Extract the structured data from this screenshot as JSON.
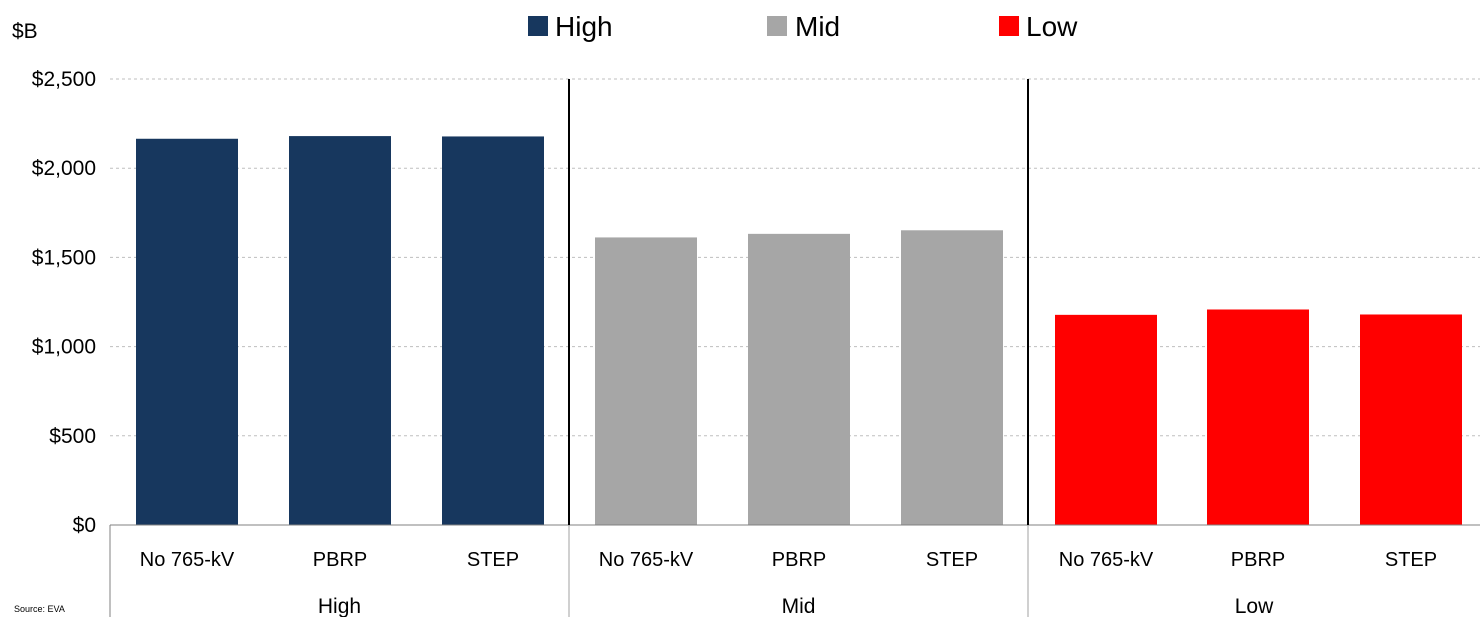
{
  "chart_data": {
    "type": "bar",
    "ylabel": "$B",
    "ylim": [
      0,
      2500
    ],
    "yticks": [
      {
        "value": 0,
        "label": "$0"
      },
      {
        "value": 500,
        "label": "$500"
      },
      {
        "value": 1000,
        "label": "$1,000"
      },
      {
        "value": 1500,
        "label": "$1,500"
      },
      {
        "value": 2000,
        "label": "$2,000"
      },
      {
        "value": 2500,
        "label": "$2,500"
      }
    ],
    "grid": true,
    "legend_position": "top",
    "groups": [
      {
        "name": "High",
        "color": "#17375E",
        "categories": [
          "No 765-kV",
          "PBRP",
          "STEP"
        ],
        "values": [
          2165,
          2180,
          2178
        ]
      },
      {
        "name": "Mid",
        "color": "#A6A6A6",
        "categories": [
          "No 765-kV",
          "PBRP",
          "STEP"
        ],
        "values": [
          1612,
          1632,
          1652
        ]
      },
      {
        "name": "Low",
        "color": "#FF0000",
        "categories": [
          "No 765-kV",
          "PBRP",
          "STEP"
        ],
        "values": [
          1178,
          1208,
          1180
        ]
      }
    ],
    "legend": [
      {
        "label": "High",
        "color": "#17375E"
      },
      {
        "label": "Mid",
        "color": "#A6A6A6"
      },
      {
        "label": "Low",
        "color": "#FF0000"
      }
    ],
    "source": "Source: EVA"
  }
}
